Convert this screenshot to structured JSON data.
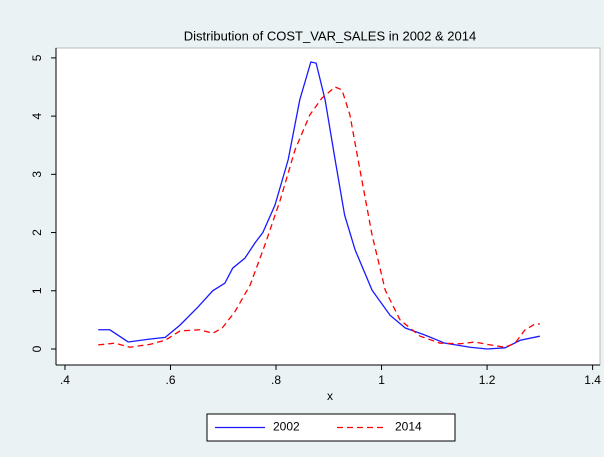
{
  "chart_data": {
    "type": "line",
    "title": "Distribution of COST_VAR_SALES in 2002 & 2014",
    "x_label": "x",
    "series": [
      {
        "name": "2002",
        "color": "#1a1aff",
        "dash": "solid",
        "x": [
          0.463,
          0.485,
          0.52,
          0.56,
          0.59,
          0.618,
          0.652,
          0.68,
          0.703,
          0.718,
          0.741,
          0.76,
          0.775,
          0.798,
          0.823,
          0.845,
          0.866,
          0.876,
          0.893,
          0.912,
          0.93,
          0.95,
          0.982,
          1.016,
          1.045,
          1.082,
          1.12,
          1.168,
          1.2,
          1.234,
          1.263,
          1.3
        ],
        "values": [
          0.33,
          0.33,
          0.12,
          0.17,
          0.2,
          0.41,
          0.72,
          1.0,
          1.13,
          1.39,
          1.56,
          1.82,
          2.0,
          2.47,
          3.25,
          4.28,
          4.93,
          4.91,
          4.28,
          3.25,
          2.3,
          1.7,
          1.01,
          0.58,
          0.36,
          0.24,
          0.1,
          0.03,
          0,
          0.02,
          0.15,
          0.22
        ]
      },
      {
        "name": "2014",
        "color": "#ff0000",
        "dash": "dashed",
        "x": [
          0.463,
          0.495,
          0.523,
          0.561,
          0.59,
          0.618,
          0.656,
          0.68,
          0.698,
          0.722,
          0.751,
          0.779,
          0.808,
          0.836,
          0.864,
          0.887,
          0.912,
          0.925,
          0.94,
          0.959,
          0.982,
          1.007,
          1.035,
          1.073,
          1.111,
          1.149,
          1.177,
          1.206,
          1.234,
          1.253,
          1.272,
          1.291,
          1.3
        ],
        "values": [
          0.07,
          0.1,
          0.03,
          0.08,
          0.15,
          0.31,
          0.33,
          0.27,
          0.36,
          0.64,
          1.1,
          1.79,
          2.56,
          3.42,
          4.02,
          4.31,
          4.5,
          4.45,
          4.02,
          3.08,
          1.96,
          1.01,
          0.5,
          0.22,
          0.1,
          0.09,
          0.12,
          0.07,
          0.03,
          0.1,
          0.33,
          0.43,
          0.43
        ]
      }
    ],
    "xlim": [
      0.383,
      1.414
    ],
    "xticks": [
      {
        "value": 0.4,
        "label": ".4"
      },
      {
        "value": 0.6,
        "label": ".6"
      },
      {
        "value": 0.8,
        "label": ".8"
      },
      1,
      1.2,
      1.4
    ],
    "ylim": [
      -0.275,
      5.17
    ],
    "yticks": [
      0,
      1,
      2,
      3,
      4,
      5
    ],
    "legend": "bottom"
  }
}
